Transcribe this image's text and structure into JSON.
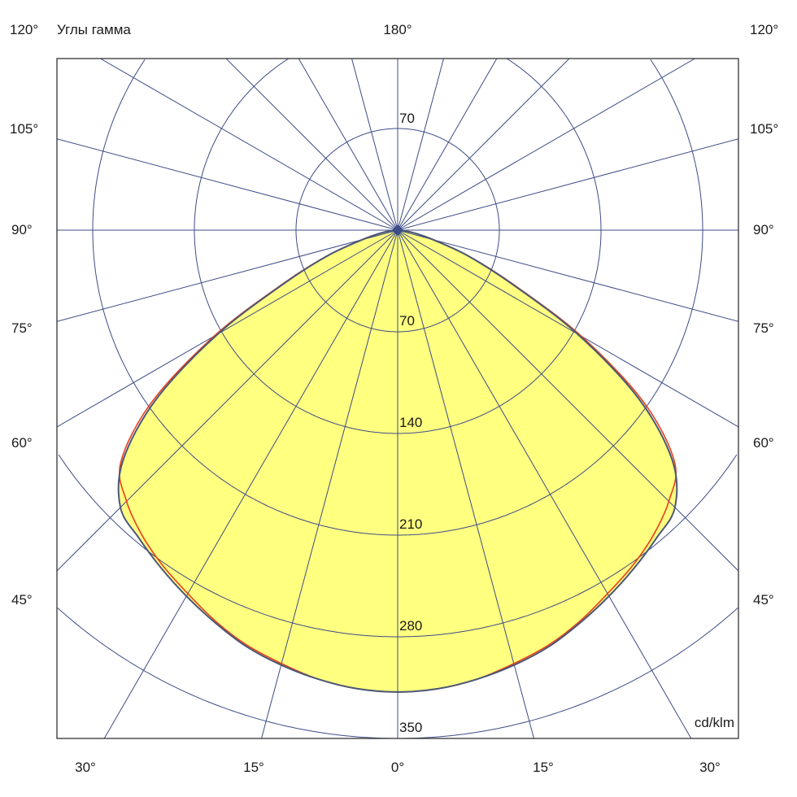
{
  "chart_data": {
    "type": "polar",
    "title": "Углы гамма",
    "unit": "cd/klm",
    "radial_ticks": [
      70,
      140,
      210,
      280,
      350
    ],
    "radial_range": [
      0,
      350
    ],
    "grid": true,
    "angle_step_deg": 15,
    "angle_labels": {
      "top_left": "120°",
      "top_center": "180°",
      "top_right": "120°",
      "left": [
        "105°",
        "90°",
        "75°",
        "60°",
        "45°"
      ],
      "right": [
        "105°",
        "90°",
        "75°",
        "60°",
        "45°"
      ],
      "bottom": [
        "30°",
        "15°",
        "0°",
        "15°",
        "30°"
      ]
    },
    "gamma_deg": [
      0,
      5,
      10,
      15,
      20,
      25,
      30,
      35,
      40,
      45,
      50,
      55,
      60,
      65,
      70,
      75,
      80,
      85,
      90
    ],
    "series": [
      {
        "color": "#4a5878",
        "values": [
          318,
          317,
          314,
          310,
          305,
          298,
          291,
          284,
          277,
          270,
          247,
          203,
          143,
          85,
          51,
          25,
          12,
          4,
          0
        ]
      },
      {
        "color": "#e8401c",
        "values": [
          318,
          317,
          314,
          309,
          304,
          297,
          289,
          282,
          274,
          264,
          249,
          207,
          146,
          87,
          52,
          26,
          12,
          4,
          0
        ]
      }
    ],
    "fill_color": "#ffff80",
    "grid_color": "#3d4c86"
  }
}
